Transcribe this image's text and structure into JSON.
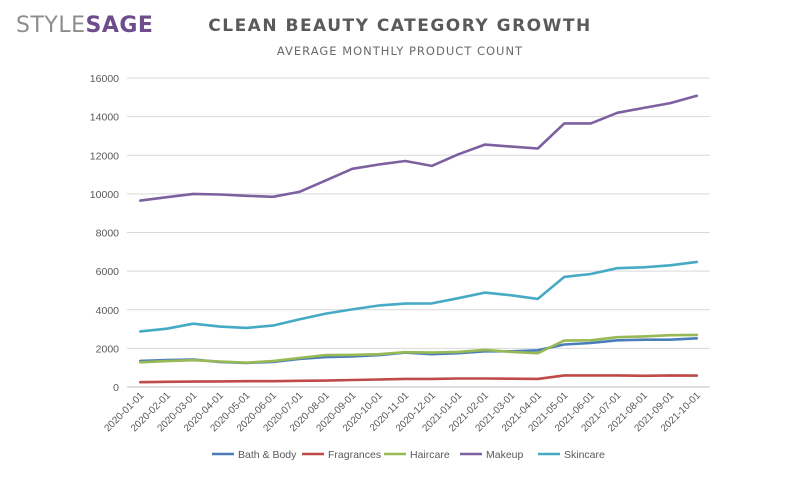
{
  "brand": {
    "part1": "STYLE",
    "part2": "SAGE"
  },
  "colors": {
    "brand_accent": "#6e4d8c",
    "brand_gray": "#8d8d8d"
  },
  "chart_data": {
    "type": "line",
    "title": "CLEAN BEAUTY CATEGORY GROWTH",
    "subtitle": "AVERAGE MONTHLY PRODUCT COUNT",
    "xlabel": "",
    "ylabel": "",
    "ylim": [
      0,
      16000
    ],
    "yticks": [
      0,
      2000,
      4000,
      6000,
      8000,
      10000,
      12000,
      14000,
      16000
    ],
    "grid": true,
    "legend_position": "bottom",
    "x": [
      "2020-01-01",
      "2020-02-01",
      "2020-03-01",
      "2020-04-01",
      "2020-05-01",
      "2020-06-01",
      "2020-07-01",
      "2020-08-01",
      "2020-09-01",
      "2020-10-01",
      "2020-11-01",
      "2020-12-01",
      "2021-01-01",
      "2021-02-01",
      "2021-03-01",
      "2021-04-01",
      "2021-05-01",
      "2021-06-01",
      "2021-07-01",
      "2021-08-01",
      "2021-09-01",
      "2021-10-01"
    ],
    "series": [
      {
        "name": "Bath & Body",
        "color": "#4a7ebb",
        "values": [
          1350,
          1400,
          1420,
          1300,
          1250,
          1300,
          1450,
          1550,
          1580,
          1650,
          1780,
          1700,
          1750,
          1850,
          1850,
          1900,
          2200,
          2280,
          2420,
          2450,
          2450,
          2520
        ]
      },
      {
        "name": "Fragrances",
        "color": "#be4b48",
        "values": [
          250,
          270,
          280,
          290,
          300,
          300,
          320,
          330,
          360,
          390,
          420,
          420,
          440,
          440,
          430,
          420,
          600,
          600,
          600,
          580,
          600,
          590
        ]
      },
      {
        "name": "Haircare",
        "color": "#98b954",
        "values": [
          1280,
          1340,
          1390,
          1320,
          1260,
          1340,
          1500,
          1650,
          1660,
          1700,
          1800,
          1780,
          1820,
          1920,
          1820,
          1750,
          2400,
          2420,
          2580,
          2620,
          2680,
          2700
        ]
      },
      {
        "name": "Makeup",
        "color": "#7d60a0",
        "values": [
          9650,
          9830,
          10000,
          9970,
          9900,
          9850,
          10100,
          10700,
          11300,
          11520,
          11700,
          11450,
          12050,
          12550,
          12450,
          12350,
          13650,
          13650,
          14200,
          14450,
          14700,
          15080
        ]
      },
      {
        "name": "Skincare",
        "color": "#46aac5",
        "values": [
          2880,
          3020,
          3280,
          3130,
          3060,
          3180,
          3500,
          3800,
          4020,
          4220,
          4320,
          4330,
          4600,
          4890,
          4750,
          4560,
          5700,
          5850,
          6150,
          6200,
          6300,
          6480
        ]
      }
    ]
  }
}
